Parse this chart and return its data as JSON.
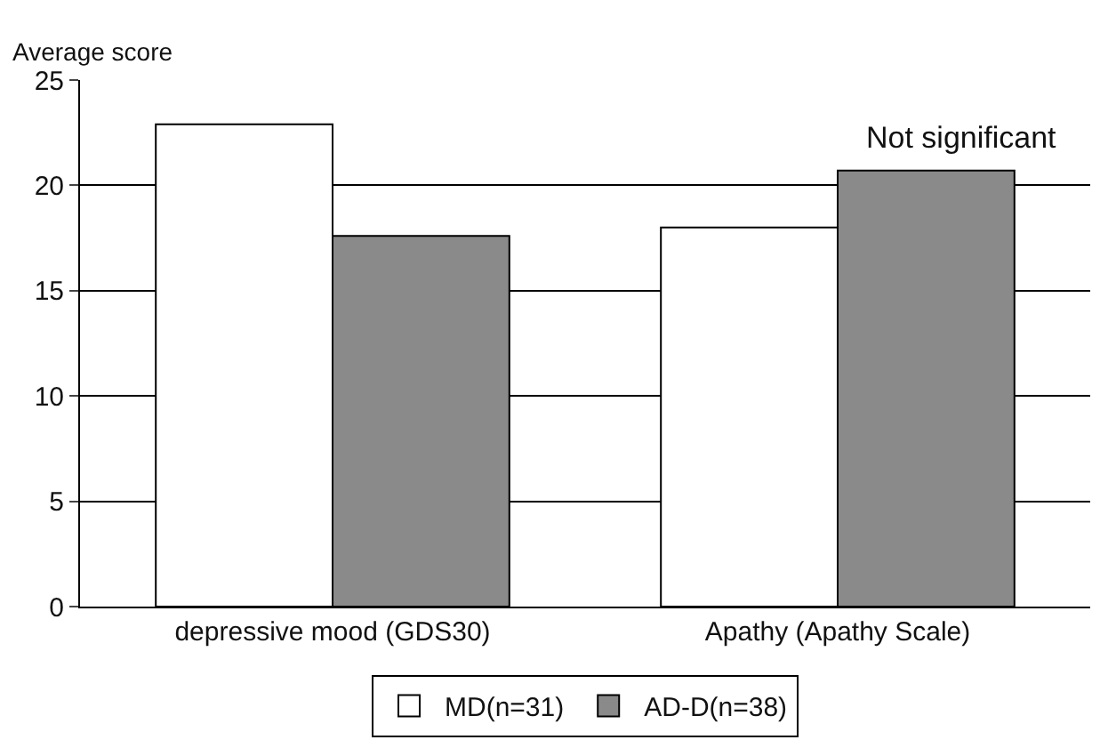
{
  "chart_data": {
    "type": "bar",
    "ylabel": "Average score",
    "categories": [
      "depressive mood (GDS30)",
      "Apathy (Apathy Scale)"
    ],
    "series": [
      {
        "name": "MD(n=31)",
        "color": "#ffffff",
        "values": [
          22.9,
          18.0
        ]
      },
      {
        "name": "AD-D(n=38)",
        "color": "#8a8a8a",
        "values": [
          17.6,
          20.7
        ]
      }
    ],
    "ylim": [
      0,
      25
    ],
    "yticks": [
      0,
      5,
      10,
      15,
      20,
      25
    ],
    "grid": "y",
    "legend": "bottom",
    "annotations": [
      "Not significant"
    ]
  }
}
